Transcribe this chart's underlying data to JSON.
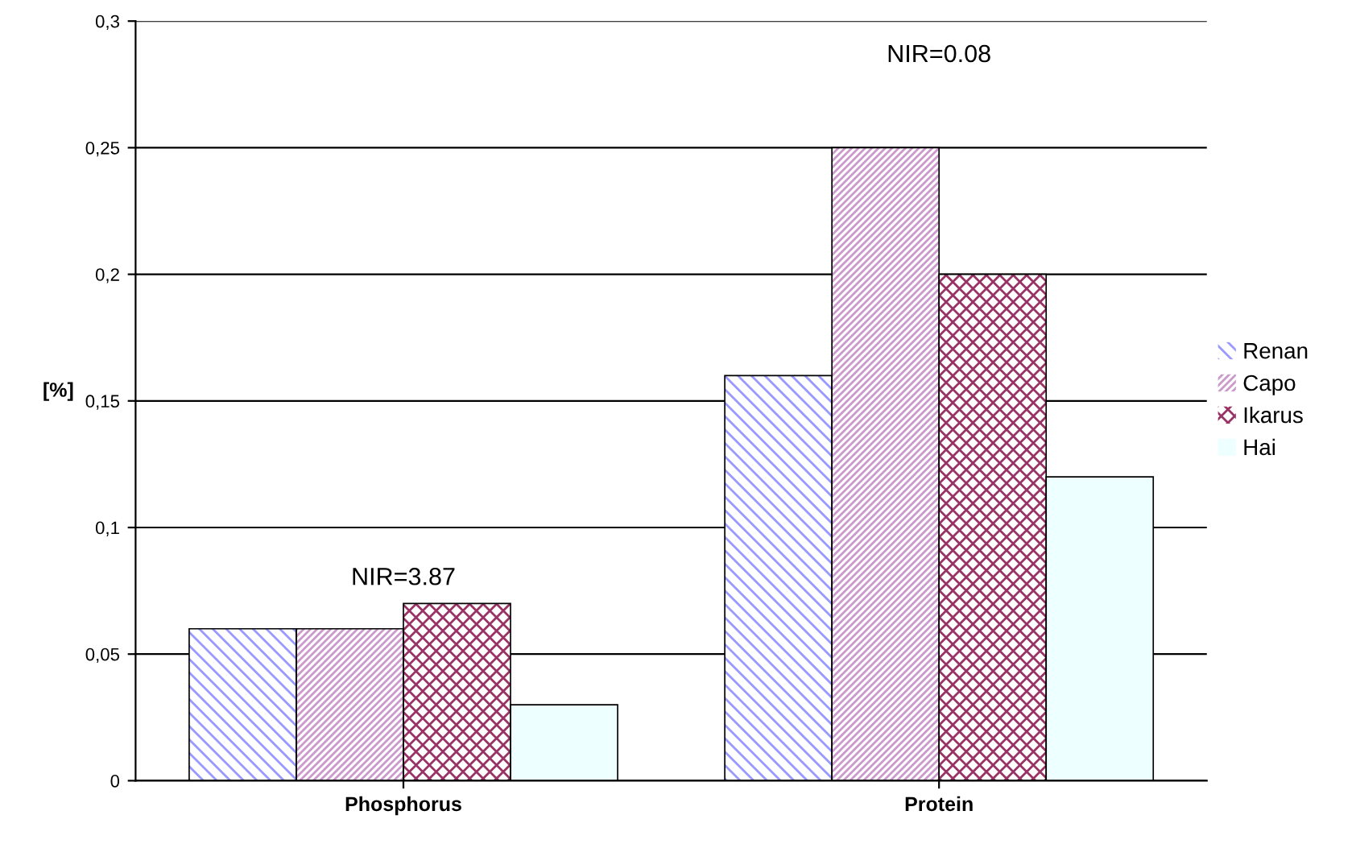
{
  "chart_data": {
    "type": "bar",
    "ylabel": "[%]",
    "categories": [
      "Phosphorus",
      "Protein"
    ],
    "series": [
      {
        "name": "Renan",
        "color": "#9999ff",
        "values": [
          0.06,
          0.16
        ]
      },
      {
        "name": "Capo",
        "color": "#cc99cc",
        "values": [
          0.06,
          0.25
        ]
      },
      {
        "name": "Ikarus",
        "color": "#993366",
        "values": [
          0.07,
          0.2
        ]
      },
      {
        "name": "Hai",
        "color": "#eeffff",
        "values": [
          0.03,
          0.12
        ]
      }
    ],
    "ylim": [
      0,
      0.3
    ],
    "yticks": [
      0,
      {
        "value": 0.05,
        "label": "0,05"
      },
      {
        "value": 0.1,
        "label": "0,1"
      },
      {
        "value": 0.15,
        "label": "0,15"
      },
      {
        "value": 0.2,
        "label": "0,2"
      },
      {
        "value": 0.25,
        "label": "0,25"
      },
      {
        "value": 0.3,
        "label": "0,3"
      }
    ],
    "grid": "y",
    "legend": "right",
    "annotations": [
      "NIR=3.87",
      "NIR=0.08"
    ]
  }
}
